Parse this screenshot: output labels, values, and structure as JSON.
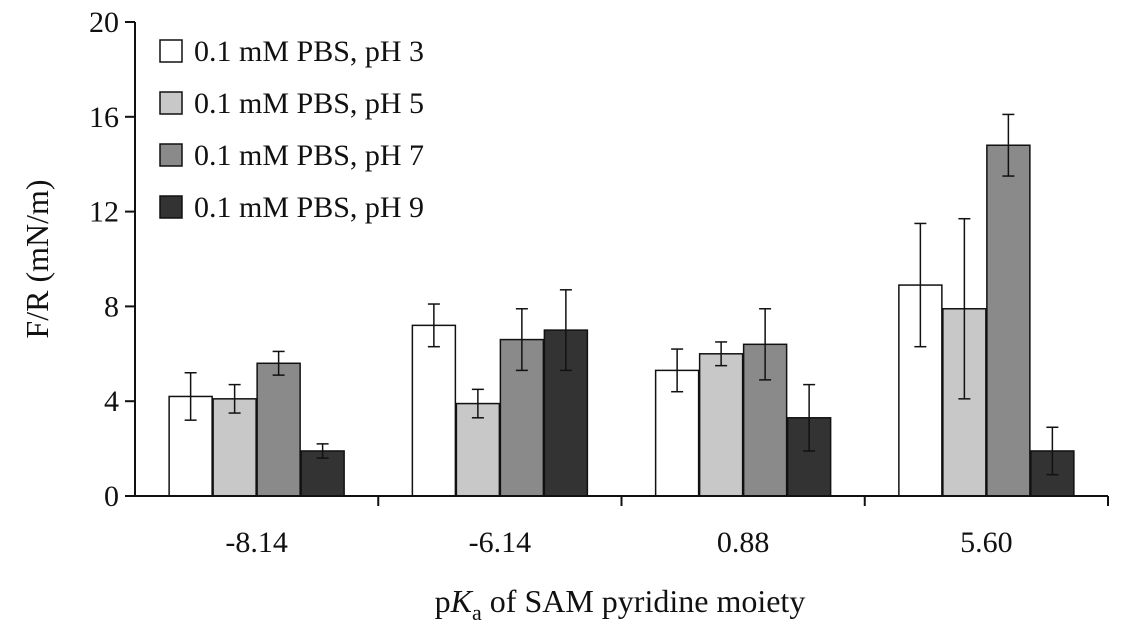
{
  "chart_data": {
    "type": "bar",
    "categories": [
      "-8.14",
      "-6.14",
      "0.88",
      "5.60"
    ],
    "series": [
      {
        "name": "0.1 mM PBS, pH 3",
        "color": "#ffffff",
        "values": [
          4.2,
          7.2,
          5.3,
          8.9
        ],
        "errors": [
          1.0,
          0.9,
          0.9,
          2.6
        ]
      },
      {
        "name": "0.1 mM PBS, pH 5",
        "color": "#c8c8c8",
        "values": [
          4.1,
          3.9,
          6.0,
          7.9
        ],
        "errors": [
          0.6,
          0.6,
          0.5,
          3.8
        ]
      },
      {
        "name": "0.1 mM PBS, pH 7",
        "color": "#8a8a8a",
        "values": [
          5.6,
          6.6,
          6.4,
          14.8
        ],
        "errors": [
          0.5,
          1.3,
          1.5,
          1.3
        ]
      },
      {
        "name": "0.1 mM PBS, pH 9",
        "color": "#333333",
        "values": [
          1.9,
          7.0,
          3.3,
          1.9
        ],
        "errors": [
          0.3,
          1.7,
          1.4,
          1.0
        ]
      }
    ],
    "yticks": [
      "0",
      "4",
      "8",
      "12",
      "16",
      "20"
    ],
    "ylim": [
      0,
      20
    ],
    "ylabel": "F/R (mN/m)",
    "xlabel": {
      "prefix": "p",
      "italic": "K",
      "sub": "a",
      "suffix": " of SAM pyridine moiety"
    },
    "legend_position": "top-left",
    "grid": false
  }
}
